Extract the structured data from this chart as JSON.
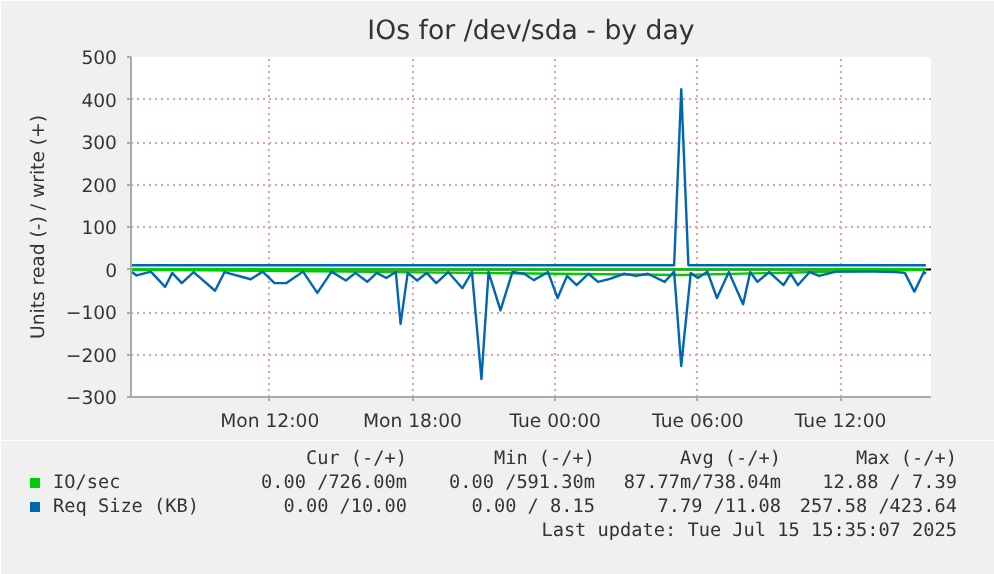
{
  "chart_data": {
    "type": "line",
    "title": "IOs for /dev/sda - by day",
    "ylabel": "Units read (-) / write (+)",
    "xlim": [
      "2025-07-14T06:10",
      "2025-07-15T15:48"
    ],
    "ylim": [
      -300,
      500
    ],
    "xticks": [
      {
        "value": "2025-07-14T12:00",
        "label": "Mon 12:00"
      },
      {
        "value": "2025-07-14T18:00",
        "label": "Mon 18:00"
      },
      {
        "value": "2025-07-15T00:00",
        "label": "Tue 00:00"
      },
      {
        "value": "2025-07-15T06:00",
        "label": "Tue 06:00"
      },
      {
        "value": "2025-07-15T12:00",
        "label": "Tue 12:00"
      }
    ],
    "yticks": [
      -300,
      -200,
      -100,
      0,
      100,
      200,
      300,
      400,
      500
    ],
    "grid": true,
    "legend": "bottom",
    "line_style": "solid",
    "ref_lines": [
      {
        "axis": "y",
        "value": 0,
        "color": "#000000"
      }
    ],
    "series": [
      {
        "name": "IO/sec",
        "color": "#00cc00",
        "x": [
          "2025-07-14T06:12",
          "2025-07-14T15:12",
          "2025-07-15T05:18",
          "2025-07-15T15:35"
        ],
        "values": [
          0,
          -5,
          -13,
          0
        ]
      },
      {
        "color": "#00cc00",
        "x": [
          "2025-07-14T06:12",
          "2025-07-15T15:35"
        ],
        "values": [
          1,
          1
        ]
      },
      {
        "name": "Req Size (KB)",
        "color": "#0066b3",
        "x": [
          "2025-07-14T06:12",
          "2025-07-14T06:24",
          "2025-07-14T07:00",
          "2025-07-14T07:36",
          "2025-07-14T07:54",
          "2025-07-14T08:18",
          "2025-07-14T08:48",
          "2025-07-14T09:42",
          "2025-07-14T10:06",
          "2025-07-14T11:12",
          "2025-07-14T11:42",
          "2025-07-14T12:12",
          "2025-07-14T12:42",
          "2025-07-14T13:24",
          "2025-07-14T14:00",
          "2025-07-14T14:36",
          "2025-07-14T15:12",
          "2025-07-14T15:36",
          "2025-07-14T16:06",
          "2025-07-14T16:30",
          "2025-07-14T16:54",
          "2025-07-14T17:18",
          "2025-07-14T17:30",
          "2025-07-14T17:48",
          "2025-07-14T18:12",
          "2025-07-14T18:36",
          "2025-07-14T19:00",
          "2025-07-14T19:30",
          "2025-07-14T20:06",
          "2025-07-14T20:30",
          "2025-07-14T20:54",
          "2025-07-14T21:12",
          "2025-07-14T21:42",
          "2025-07-14T22:12",
          "2025-07-14T22:42",
          "2025-07-14T23:06",
          "2025-07-14T23:42",
          "2025-07-15T00:06",
          "2025-07-15T00:30",
          "2025-07-15T00:54",
          "2025-07-15T01:24",
          "2025-07-15T01:48",
          "2025-07-15T02:18",
          "2025-07-15T02:54",
          "2025-07-15T03:24",
          "2025-07-15T03:54",
          "2025-07-15T04:36",
          "2025-07-15T05:00",
          "2025-07-15T05:18",
          "2025-07-15T05:42",
          "2025-07-15T06:00",
          "2025-07-15T06:24",
          "2025-07-15T06:48",
          "2025-07-15T07:18",
          "2025-07-15T07:54",
          "2025-07-15T08:12",
          "2025-07-15T08:30",
          "2025-07-15T09:00",
          "2025-07-15T09:36",
          "2025-07-15T09:54",
          "2025-07-15T10:12",
          "2025-07-15T10:42",
          "2025-07-15T11:06",
          "2025-07-15T11:48",
          "2025-07-15T12:36",
          "2025-07-15T13:24",
          "2025-07-15T14:18",
          "2025-07-15T14:42",
          "2025-07-15T15:06",
          "2025-07-15T15:30",
          "2025-07-15T15:35"
        ],
        "values": [
          -6,
          -14,
          -5,
          -41,
          -8,
          -32,
          -6,
          -50,
          -6,
          -23,
          -5,
          -32,
          -32,
          -5,
          -55,
          -5,
          -26,
          -8,
          -29,
          -8,
          -20,
          -6,
          -128,
          -8,
          -26,
          -8,
          -32,
          -6,
          -44,
          -6,
          -258,
          -6,
          -96,
          -6,
          -10,
          -25,
          -6,
          -67,
          -15,
          -37,
          -10,
          -29,
          -22,
          -10,
          -15,
          -10,
          -29,
          -5,
          -227,
          -8,
          -20,
          -5,
          -67,
          -6,
          -82,
          -6,
          -29,
          -6,
          -37,
          -10,
          -37,
          -6,
          -15,
          -5,
          -5,
          -5,
          -6,
          -8,
          -52,
          -6,
          -10
        ]
      },
      {
        "color": "#0066b3",
        "x": [
          "2025-07-14T06:12",
          "2025-07-15T05:00",
          "2025-07-15T05:18",
          "2025-07-15T05:36",
          "2025-07-15T15:35"
        ],
        "values": [
          10,
          10,
          424,
          10,
          10
        ]
      }
    ],
    "annotations": [
      "Cur (-/+)",
      "Min (-/+)",
      "Avg (-/+)",
      "Max (-/+)",
      "0.00 /726.00m",
      "0.00 /591.30m",
      "87.77m/738.04m",
      "12.88 / 7.39",
      "0.00 /10.00",
      "0.00 / 8.15",
      "7.79 /11.08",
      "257.58 /423.64",
      "Last update: Tue Jul 15 15:35:07 2025"
    ]
  }
}
